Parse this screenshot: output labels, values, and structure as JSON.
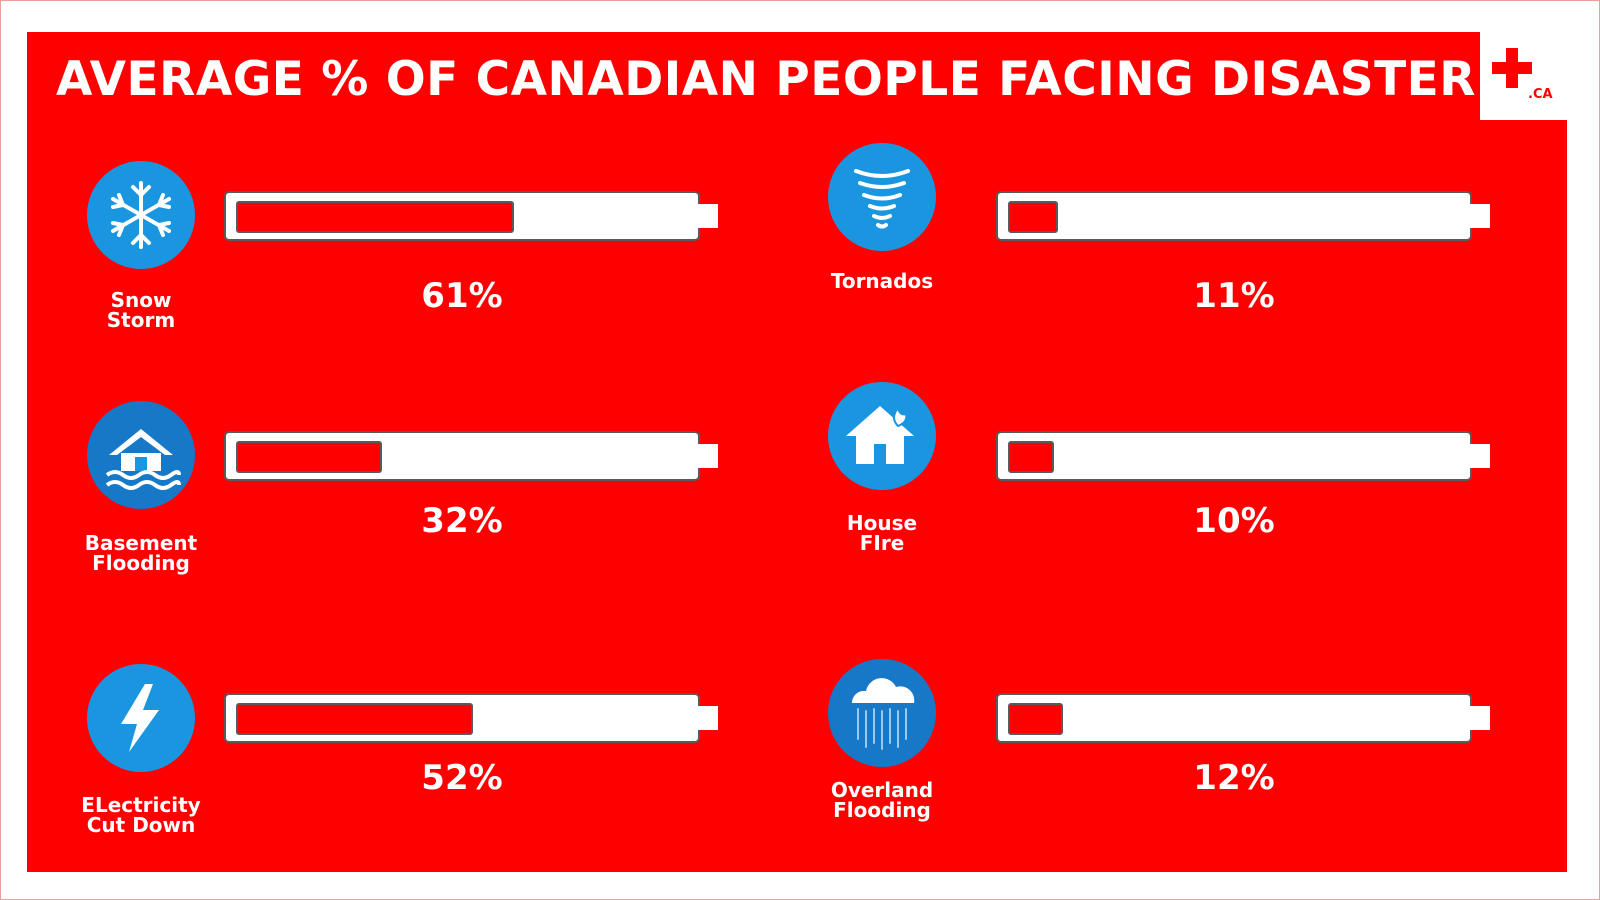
{
  "title": "AVERAGE % OF CANADIAN PEOPLE FACING DISASTER",
  "logo": {
    "suffix": ".CA"
  },
  "colors": {
    "background": "#ff0000",
    "bar": "#ffffff",
    "icon": "#1a96e0"
  },
  "chart_data": {
    "type": "bar",
    "title": "AVERAGE % OF CANADIAN PEOPLE FACING DISASTER",
    "categories": [
      "Snow\nStorm",
      "Basement\nFlooding",
      "ELectricity\nCut Down",
      "Tornados",
      "House\nFIre",
      "Overland\nFlooding"
    ],
    "values": [
      61,
      32,
      52,
      11,
      10,
      12
    ],
    "value_labels": [
      "61%",
      "32%",
      "52%",
      "11%",
      "10%",
      "12%"
    ],
    "icons": [
      "snowflake-icon",
      "flooded-house-icon",
      "lightning-icon",
      "tornado-icon",
      "house-fire-icon",
      "rain-cloud-icon"
    ],
    "ylim": [
      0,
      100
    ]
  }
}
